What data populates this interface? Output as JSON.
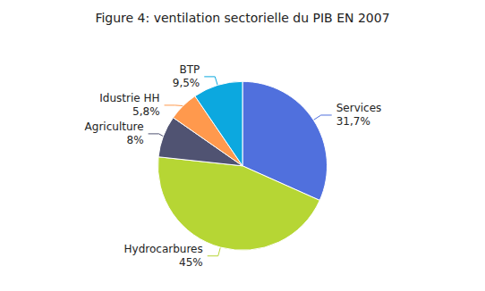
{
  "chart_data": {
    "type": "pie",
    "title": "Figure 4: ventilation sectorielle du PIB EN 2007",
    "categories": [
      "Services",
      "Hydrocarbures",
      "Agriculture",
      "Idustrie HH",
      "BTP"
    ],
    "values": [
      31.7,
      45.0,
      8.0,
      5.8,
      9.5
    ],
    "value_labels": [
      "31,7%",
      "45%",
      "8%",
      "5,8%",
      "9,5%"
    ],
    "data_labels": true,
    "legend": false
  }
}
